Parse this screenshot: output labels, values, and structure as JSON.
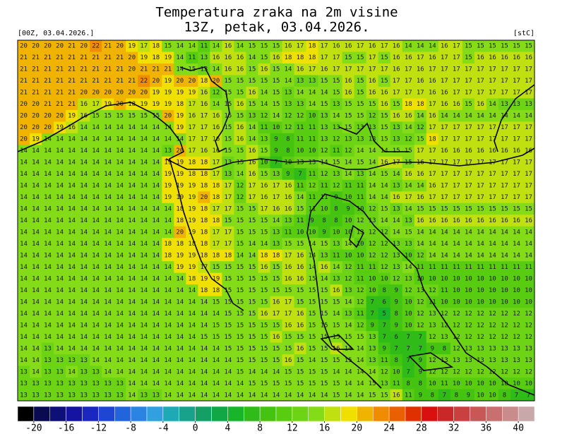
{
  "header": {
    "title": "Temperatura zraka na 2m visine",
    "subtitle": "13Z, petak, 03.04.2026.",
    "run": "[00Z, 03.04.2026.]",
    "unit": "[stC]"
  },
  "grid": {
    "rows": [
      [
        20,
        20,
        20,
        20,
        21,
        20,
        22,
        21,
        20,
        19,
        17,
        18,
        15,
        14,
        14,
        11,
        14,
        16,
        14,
        15,
        15,
        15,
        16,
        17,
        18,
        17,
        16,
        16,
        17,
        16,
        17,
        16,
        14,
        14,
        14,
        16,
        17,
        15,
        15,
        15,
        15,
        15,
        15
      ],
      [
        21,
        21,
        21,
        21,
        21,
        21,
        21,
        21,
        21,
        20,
        19,
        18,
        19,
        14,
        11,
        13,
        16,
        16,
        16,
        14,
        15,
        16,
        18,
        18,
        18,
        17,
        17,
        15,
        15,
        17,
        15,
        16,
        16,
        17,
        16,
        17,
        17,
        15,
        16,
        16,
        16,
        16,
        16
      ],
      [
        21,
        21,
        21,
        21,
        21,
        21,
        21,
        21,
        21,
        20,
        21,
        21,
        21,
        14,
        15,
        13,
        14,
        16,
        16,
        15,
        16,
        15,
        14,
        16,
        17,
        16,
        17,
        17,
        17,
        17,
        17,
        16,
        17,
        16,
        17,
        17,
        17,
        17,
        17,
        17,
        17,
        17,
        17
      ],
      [
        21,
        21,
        21,
        21,
        21,
        21,
        21,
        21,
        21,
        21,
        22,
        20,
        19,
        20,
        20,
        18,
        20,
        15,
        15,
        15,
        15,
        15,
        14,
        13,
        13,
        15,
        15,
        16,
        15,
        16,
        15,
        17,
        17,
        16,
        16,
        17,
        17,
        17,
        17,
        17,
        17,
        17,
        17
      ],
      [
        21,
        21,
        21,
        21,
        21,
        20,
        20,
        20,
        20,
        20,
        20,
        19,
        19,
        19,
        19,
        16,
        12,
        15,
        15,
        16,
        14,
        15,
        13,
        14,
        14,
        14,
        15,
        16,
        15,
        16,
        16,
        17,
        17,
        17,
        16,
        16,
        17,
        17,
        17,
        17,
        17,
        17,
        17
      ],
      [
        20,
        20,
        21,
        21,
        21,
        16,
        17,
        19,
        20,
        18,
        19,
        19,
        19,
        18,
        17,
        16,
        14,
        15,
        16,
        15,
        14,
        15,
        13,
        13,
        14,
        15,
        13,
        15,
        15,
        15,
        16,
        15,
        18,
        18,
        17,
        16,
        16,
        15,
        16,
        14,
        13,
        13,
        13
      ],
      [
        20,
        20,
        20,
        20,
        19,
        16,
        15,
        15,
        15,
        15,
        15,
        15,
        20,
        19,
        16,
        17,
        16,
        15,
        15,
        13,
        12,
        14,
        12,
        12,
        10,
        13,
        14,
        15,
        15,
        12,
        15,
        16,
        16,
        14,
        16,
        14,
        14,
        14,
        14,
        14,
        14,
        14,
        14
      ],
      [
        20,
        20,
        20,
        19,
        16,
        14,
        14,
        14,
        14,
        14,
        14,
        14,
        14,
        19,
        17,
        17,
        16,
        15,
        16,
        14,
        11,
        10,
        12,
        11,
        11,
        13,
        13,
        15,
        13,
        13,
        15,
        13,
        14,
        12,
        17,
        17,
        17,
        17,
        17,
        17,
        17,
        17,
        17
      ],
      [
        20,
        19,
        14,
        14,
        14,
        14,
        14,
        14,
        14,
        14,
        14,
        14,
        14,
        14,
        17,
        17,
        16,
        15,
        16,
        14,
        13,
        9,
        8,
        11,
        11,
        13,
        12,
        13,
        13,
        13,
        15,
        13,
        12,
        15,
        18,
        17,
        17,
        17,
        17,
        17,
        17,
        17,
        17
      ],
      [
        14,
        14,
        14,
        14,
        14,
        14,
        14,
        14,
        14,
        14,
        14,
        14,
        13,
        20,
        17,
        16,
        16,
        15,
        15,
        16,
        15,
        9,
        8,
        10,
        10,
        12,
        11,
        12,
        14,
        14,
        14,
        15,
        15,
        17,
        17,
        16,
        16,
        16,
        16,
        16,
        16,
        16,
        16
      ],
      [
        14,
        14,
        14,
        14,
        14,
        14,
        14,
        14,
        14,
        14,
        14,
        14,
        19,
        19,
        18,
        18,
        17,
        13,
        15,
        16,
        10,
        7,
        10,
        13,
        13,
        14,
        15,
        14,
        15,
        14,
        16,
        17,
        15,
        16,
        17,
        17,
        17,
        17,
        17,
        17,
        17,
        17,
        17
      ],
      [
        14,
        14,
        14,
        14,
        14,
        14,
        14,
        14,
        14,
        14,
        14,
        14,
        19,
        19,
        18,
        18,
        17,
        13,
        14,
        16,
        15,
        13,
        9,
        7,
        11,
        12,
        13,
        14,
        13,
        14,
        15,
        14,
        16,
        16,
        17,
        17,
        17,
        17,
        17,
        17,
        17,
        17,
        17
      ],
      [
        14,
        14,
        14,
        14,
        14,
        14,
        14,
        14,
        14,
        14,
        14,
        14,
        19,
        19,
        19,
        18,
        18,
        17,
        12,
        17,
        16,
        17,
        16,
        11,
        12,
        11,
        12,
        11,
        11,
        14,
        14,
        13,
        14,
        14,
        16,
        17,
        17,
        17,
        17,
        17,
        17,
        17,
        17
      ],
      [
        14,
        14,
        14,
        14,
        14,
        14,
        14,
        14,
        14,
        14,
        14,
        14,
        19,
        19,
        19,
        20,
        18,
        17,
        12,
        17,
        16,
        17,
        16,
        14,
        11,
        11,
        9,
        10,
        11,
        14,
        14,
        16,
        17,
        16,
        17,
        17,
        17,
        17,
        17,
        17,
        17,
        17,
        17
      ],
      [
        14,
        14,
        14,
        14,
        14,
        14,
        14,
        14,
        14,
        14,
        14,
        14,
        14,
        18,
        19,
        18,
        17,
        17,
        15,
        15,
        17,
        16,
        16,
        15,
        11,
        10,
        8,
        9,
        10,
        12,
        15,
        13,
        14,
        15,
        15,
        15,
        15,
        15,
        15,
        15,
        15,
        15,
        15
      ],
      [
        14,
        14,
        14,
        14,
        14,
        14,
        14,
        14,
        14,
        14,
        14,
        14,
        14,
        18,
        19,
        18,
        18,
        15,
        15,
        15,
        15,
        14,
        13,
        11,
        9,
        8,
        8,
        10,
        12,
        13,
        14,
        14,
        13,
        16,
        16,
        16,
        16,
        16,
        16,
        16,
        16,
        16,
        16
      ],
      [
        14,
        14,
        14,
        14,
        14,
        14,
        14,
        14,
        14,
        14,
        14,
        14,
        14,
        20,
        19,
        18,
        17,
        17,
        15,
        15,
        15,
        13,
        11,
        10,
        10,
        9,
        10,
        10,
        13,
        12,
        12,
        14,
        15,
        14,
        14,
        14,
        14,
        14,
        14,
        14,
        14,
        14,
        14
      ],
      [
        14,
        14,
        14,
        14,
        14,
        14,
        14,
        14,
        14,
        14,
        14,
        14,
        18,
        18,
        18,
        18,
        17,
        17,
        15,
        14,
        14,
        13,
        15,
        15,
        14,
        15,
        13,
        14,
        10,
        12,
        12,
        13,
        13,
        14,
        14,
        14,
        14,
        14,
        14,
        14,
        14,
        14,
        14
      ],
      [
        14,
        14,
        14,
        14,
        14,
        14,
        14,
        14,
        14,
        14,
        14,
        14,
        18,
        19,
        19,
        18,
        18,
        18,
        14,
        14,
        18,
        18,
        17,
        16,
        14,
        13,
        11,
        10,
        10,
        12,
        12,
        13,
        10,
        12,
        14,
        14,
        14,
        14,
        14,
        14,
        14,
        14,
        14
      ],
      [
        14,
        14,
        14,
        14,
        14,
        14,
        14,
        14,
        14,
        14,
        14,
        14,
        14,
        19,
        19,
        17,
        15,
        15,
        15,
        15,
        16,
        15,
        16,
        16,
        14,
        16,
        14,
        12,
        11,
        11,
        12,
        13,
        14,
        11,
        11,
        11,
        11,
        11,
        11,
        11,
        11,
        11,
        11
      ],
      [
        14,
        14,
        14,
        14,
        14,
        14,
        14,
        14,
        14,
        14,
        14,
        14,
        14,
        14,
        18,
        19,
        19,
        15,
        15,
        15,
        15,
        15,
        16,
        16,
        15,
        14,
        13,
        12,
        11,
        10,
        10,
        12,
        13,
        10,
        10,
        10,
        10,
        10,
        10,
        10,
        10,
        10,
        10
      ],
      [
        14,
        14,
        14,
        14,
        14,
        14,
        14,
        14,
        14,
        14,
        14,
        14,
        14,
        14,
        14,
        18,
        18,
        15,
        15,
        15,
        15,
        15,
        15,
        15,
        15,
        15,
        16,
        13,
        12,
        10,
        8,
        9,
        12,
        13,
        12,
        11,
        10,
        10,
        10,
        10,
        10,
        10,
        10
      ],
      [
        14,
        14,
        14,
        14,
        14,
        14,
        14,
        14,
        14,
        14,
        14,
        14,
        14,
        14,
        14,
        14,
        15,
        15,
        15,
        15,
        15,
        16,
        17,
        15,
        15,
        15,
        15,
        14,
        12,
        7,
        6,
        9,
        10,
        12,
        11,
        10,
        10,
        10,
        10,
        10,
        10,
        10,
        10
      ],
      [
        14,
        14,
        14,
        14,
        14,
        14,
        14,
        14,
        14,
        14,
        14,
        14,
        14,
        14,
        14,
        14,
        14,
        15,
        15,
        15,
        16,
        17,
        17,
        16,
        15,
        15,
        14,
        13,
        11,
        7,
        5,
        8,
        10,
        12,
        13,
        12,
        12,
        12,
        12,
        12,
        12,
        12,
        12
      ],
      [
        14,
        14,
        14,
        14,
        14,
        14,
        14,
        14,
        14,
        14,
        14,
        14,
        14,
        14,
        14,
        14,
        15,
        15,
        15,
        15,
        15,
        15,
        16,
        16,
        15,
        15,
        15,
        14,
        12,
        9,
        7,
        9,
        10,
        12,
        13,
        12,
        12,
        12,
        12,
        12,
        12,
        12,
        12
      ],
      [
        14,
        14,
        14,
        14,
        14,
        14,
        14,
        14,
        14,
        14,
        14,
        14,
        14,
        14,
        14,
        15,
        15,
        15,
        15,
        15,
        15,
        16,
        15,
        15,
        15,
        15,
        15,
        15,
        15,
        13,
        7,
        6,
        7,
        7,
        12,
        13,
        12,
        12,
        12,
        12,
        12,
        12,
        12
      ],
      [
        14,
        14,
        13,
        14,
        14,
        14,
        14,
        14,
        14,
        14,
        14,
        14,
        14,
        14,
        14,
        14,
        14,
        15,
        15,
        15,
        15,
        15,
        15,
        16,
        15,
        15,
        16,
        14,
        14,
        13,
        9,
        7,
        7,
        7,
        9,
        8,
        12,
        13,
        13,
        13,
        13,
        13,
        13
      ],
      [
        14,
        14,
        13,
        13,
        13,
        13,
        14,
        14,
        14,
        14,
        14,
        14,
        14,
        14,
        14,
        14,
        14,
        14,
        15,
        15,
        15,
        15,
        16,
        15,
        14,
        15,
        15,
        15,
        14,
        13,
        11,
        8,
        7,
        9,
        12,
        13,
        13,
        13,
        13,
        13,
        13,
        13,
        13
      ],
      [
        13,
        14,
        13,
        13,
        14,
        13,
        13,
        14,
        14,
        14,
        14,
        14,
        14,
        14,
        14,
        14,
        14,
        14,
        15,
        14,
        14,
        14,
        15,
        15,
        15,
        15,
        14,
        14,
        14,
        14,
        12,
        10,
        7,
        9,
        12,
        12,
        12,
        12,
        12,
        12,
        12,
        12,
        12
      ],
      [
        13,
        13,
        13,
        13,
        13,
        13,
        13,
        13,
        13,
        14,
        14,
        14,
        14,
        14,
        14,
        14,
        14,
        14,
        14,
        15,
        15,
        15,
        15,
        15,
        15,
        15,
        15,
        14,
        14,
        15,
        13,
        11,
        8,
        8,
        10,
        11,
        10,
        10,
        10,
        10,
        10,
        10,
        10
      ],
      [
        13,
        13,
        13,
        13,
        13,
        13,
        13,
        13,
        13,
        14,
        13,
        13,
        14,
        14,
        14,
        14,
        14,
        14,
        14,
        14,
        14,
        14,
        14,
        14,
        14,
        14,
        15,
        14,
        14,
        15,
        15,
        16,
        11,
        9,
        8,
        7,
        8,
        9,
        10,
        10,
        8,
        7,
        7
      ]
    ]
  },
  "colorbar": {
    "colors": [
      "#000000",
      "#0a0a50",
      "#0f0f78",
      "#1414a0",
      "#1a28c0",
      "#1e46d2",
      "#2264dc",
      "#2a84e2",
      "#30a0e0",
      "#1eaab4",
      "#18a28c",
      "#14a064",
      "#10a846",
      "#18b42a",
      "#30bc18",
      "#44c410",
      "#58cc10",
      "#6cd414",
      "#84dc18",
      "#c0e010",
      "#f0e000",
      "#f0b400",
      "#f08c00",
      "#e86000",
      "#e03000",
      "#d81010",
      "#c82828",
      "#c84040",
      "#c85858",
      "#c87070",
      "#c88c8c",
      "#c8a8a8"
    ],
    "ticks": [
      -20,
      -16,
      -12,
      -8,
      -4,
      0,
      4,
      8,
      12,
      16,
      20,
      24,
      28,
      32,
      36,
      40
    ]
  }
}
